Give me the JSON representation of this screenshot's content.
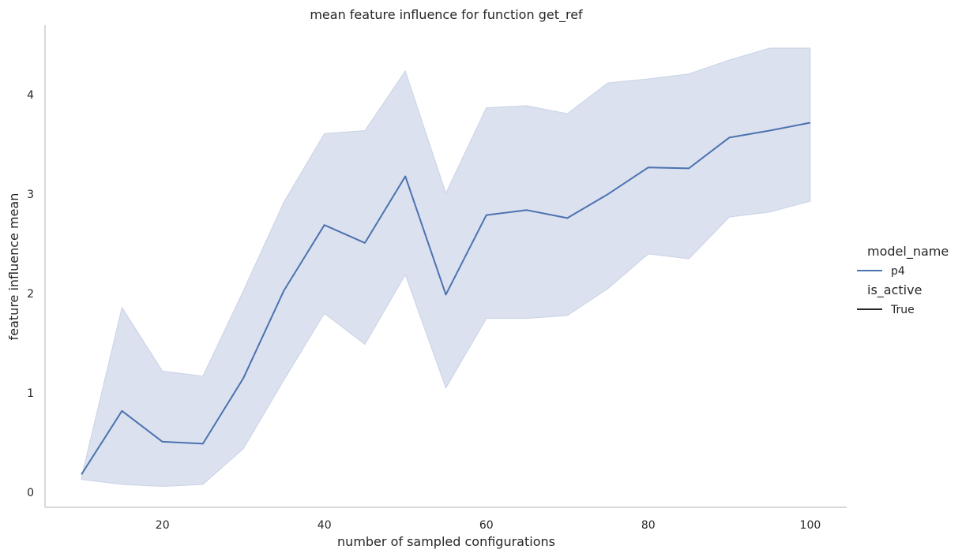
{
  "chart_data": {
    "type": "line",
    "title": "mean feature influence for function get_ref",
    "xlabel": "number of sampled configurations",
    "ylabel": "feature influence mean",
    "xlim": [
      5.5,
      104.5
    ],
    "ylim": [
      -0.15,
      4.7
    ],
    "xticks": [
      20,
      40,
      60,
      80,
      100
    ],
    "yticks": [
      0,
      1,
      2,
      3,
      4
    ],
    "grid": false,
    "legend": {
      "placement": "right",
      "groups": [
        {
          "title": "model_name",
          "entries": [
            {
              "label": "p4",
              "color": "#4c72b0"
            }
          ]
        },
        {
          "title": "is_active",
          "entries": [
            {
              "label": "True",
              "color": "#262626"
            }
          ]
        }
      ]
    },
    "series": [
      {
        "name": "p4",
        "color": "#4c72b0",
        "band_color": "#dbe1ee",
        "x": [
          10,
          15,
          20,
          25,
          30,
          35,
          40,
          45,
          50,
          55,
          60,
          65,
          70,
          75,
          80,
          85,
          90,
          95,
          100
        ],
        "y": [
          0.18,
          0.82,
          0.51,
          0.49,
          1.15,
          2.03,
          2.69,
          2.51,
          3.18,
          1.99,
          2.79,
          2.84,
          2.76,
          3.0,
          3.27,
          3.26,
          3.57,
          3.64,
          3.72
        ],
        "lower": [
          0.13,
          0.08,
          0.06,
          0.08,
          0.44,
          1.13,
          1.8,
          1.49,
          2.19,
          1.05,
          1.75,
          1.75,
          1.78,
          2.05,
          2.4,
          2.35,
          2.77,
          2.82,
          2.93
        ],
        "upper": [
          0.15,
          1.86,
          1.22,
          1.17,
          2.03,
          2.92,
          3.61,
          3.64,
          4.24,
          3.01,
          3.87,
          3.89,
          3.81,
          4.12,
          4.16,
          4.21,
          4.35,
          4.47,
          4.47
        ]
      }
    ]
  }
}
